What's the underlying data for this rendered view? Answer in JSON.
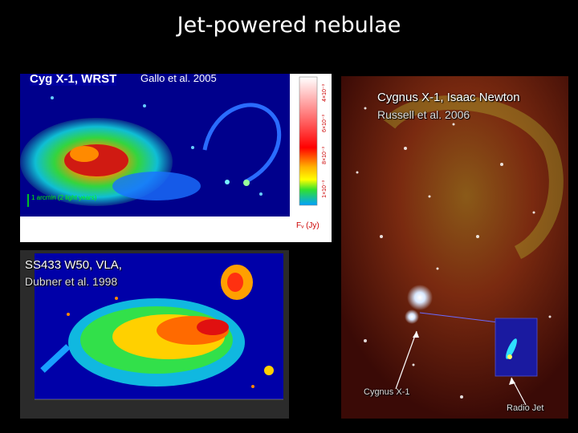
{
  "slide": {
    "title": "Jet-powered nebulae"
  },
  "panel_cyg_wrst": {
    "label": "Cyg X-1, WRST",
    "citation": "Gallo et al. 2005",
    "scale_text": "1 arcmin (2 light years)",
    "colorbar_ticks": [
      "4×10⁻³",
      "6×10⁻³",
      "8×10⁻³",
      "1×10⁻³"
    ],
    "colorbar_unit": "Fᵥ (Jy)"
  },
  "panel_ss433": {
    "label": "SS433 W50, VLA,",
    "citation": "Dubner et al. 1998"
  },
  "panel_cygnus_optical": {
    "label": "Cygnus X-1, Isaac Newton",
    "citation": "Russell et al. 2006",
    "arrow_label_source": "Cygnus X-1",
    "arrow_label_jet": "Radio Jet"
  },
  "colors": {
    "background": "#000000",
    "text": "#ffffff",
    "radio_bg": "#1a1a1a"
  }
}
